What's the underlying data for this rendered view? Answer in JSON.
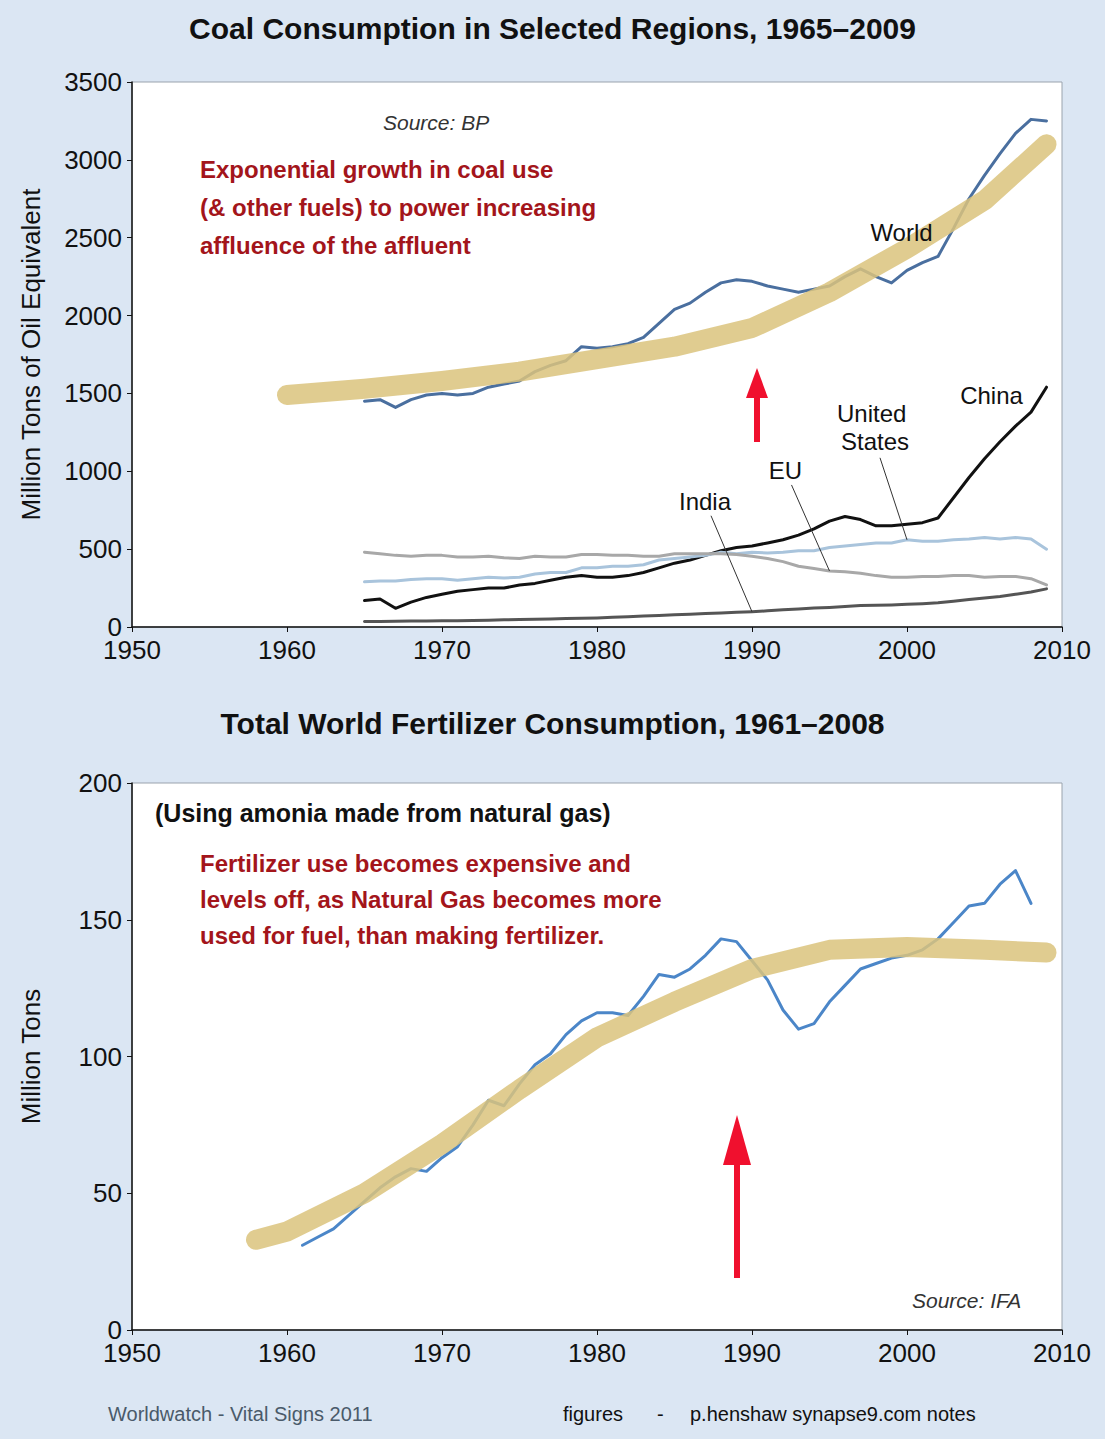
{
  "chart_data": [
    {
      "type": "line",
      "title": "Coal Consumption in Selected Regions, 1965–2009",
      "y_label": "Million Tons of Oil Equivalent",
      "annotation": [
        "Exponential growth in coal use",
        "(& other fuels) to power increasing",
        "affluence of the affluent"
      ],
      "source": "Source: BP",
      "xlim": [
        1950,
        2010
      ],
      "xticks": [
        1950,
        1960,
        1970,
        1980,
        1990,
        2000,
        2010
      ],
      "ylim": [
        0,
        3500
      ],
      "yticks": [
        0,
        500,
        1000,
        1500,
        2000,
        2500,
        3000,
        3500
      ],
      "grid": false,
      "series": [
        {
          "name": "World",
          "color": "#4a6f9f",
          "line_style": "solid",
          "x": [
            1965,
            1966,
            1967,
            1968,
            1969,
            1970,
            1971,
            1972,
            1973,
            1974,
            1975,
            1976,
            1977,
            1978,
            1979,
            1980,
            1981,
            1982,
            1983,
            1984,
            1985,
            1986,
            1987,
            1988,
            1989,
            1990,
            1991,
            1992,
            1993,
            1994,
            1995,
            1996,
            1997,
            1998,
            1999,
            2000,
            2001,
            2002,
            2003,
            2004,
            2005,
            2006,
            2007,
            2008,
            2009
          ],
          "values": [
            1450,
            1460,
            1410,
            1460,
            1490,
            1500,
            1490,
            1500,
            1540,
            1560,
            1580,
            1640,
            1680,
            1710,
            1800,
            1790,
            1800,
            1820,
            1860,
            1950,
            2040,
            2080,
            2150,
            2210,
            2230,
            2220,
            2190,
            2170,
            2150,
            2170,
            2190,
            2250,
            2300,
            2250,
            2210,
            2290,
            2340,
            2380,
            2560,
            2750,
            2900,
            3040,
            3170,
            3260,
            3250
          ]
        },
        {
          "name": "China",
          "color": "#111111",
          "line_style": "solid",
          "x": [
            1965,
            1966,
            1967,
            1968,
            1969,
            1970,
            1971,
            1972,
            1973,
            1974,
            1975,
            1976,
            1977,
            1978,
            1979,
            1980,
            1981,
            1982,
            1983,
            1984,
            1985,
            1986,
            1987,
            1988,
            1989,
            1990,
            1991,
            1992,
            1993,
            1994,
            1995,
            1996,
            1997,
            1998,
            1999,
            2000,
            2001,
            2002,
            2003,
            2004,
            2005,
            2006,
            2007,
            2008,
            2009
          ],
          "values": [
            170,
            180,
            120,
            160,
            190,
            210,
            230,
            240,
            250,
            250,
            270,
            280,
            300,
            320,
            330,
            320,
            320,
            330,
            350,
            380,
            410,
            430,
            460,
            490,
            510,
            520,
            540,
            560,
            590,
            630,
            680,
            710,
            690,
            650,
            650,
            660,
            670,
            700,
            830,
            960,
            1080,
            1190,
            1290,
            1380,
            1540
          ]
        },
        {
          "name": "United States",
          "color": "#a9c4dc",
          "line_style": "solid",
          "x": [
            1965,
            1966,
            1967,
            1968,
            1969,
            1970,
            1971,
            1972,
            1973,
            1974,
            1975,
            1976,
            1977,
            1978,
            1979,
            1980,
            1981,
            1982,
            1983,
            1984,
            1985,
            1986,
            1987,
            1988,
            1989,
            1990,
            1991,
            1992,
            1993,
            1994,
            1995,
            1996,
            1997,
            1998,
            1999,
            2000,
            2001,
            2002,
            2003,
            2004,
            2005,
            2006,
            2007,
            2008,
            2009
          ],
          "values": [
            290,
            295,
            295,
            305,
            310,
            310,
            300,
            310,
            320,
            315,
            320,
            340,
            350,
            350,
            380,
            380,
            390,
            390,
            400,
            430,
            440,
            450,
            460,
            480,
            470,
            480,
            475,
            480,
            490,
            490,
            510,
            520,
            530,
            540,
            540,
            560,
            550,
            550,
            560,
            565,
            575,
            565,
            575,
            565,
            500
          ]
        },
        {
          "name": "EU",
          "color": "#a8a8a8",
          "line_style": "solid",
          "x": [
            1965,
            1966,
            1967,
            1968,
            1969,
            1970,
            1971,
            1972,
            1973,
            1974,
            1975,
            1976,
            1977,
            1978,
            1979,
            1980,
            1981,
            1982,
            1983,
            1984,
            1985,
            1986,
            1987,
            1988,
            1989,
            1990,
            1991,
            1992,
            1993,
            1994,
            1995,
            1996,
            1997,
            1998,
            1999,
            2000,
            2001,
            2002,
            2003,
            2004,
            2005,
            2006,
            2007,
            2008,
            2009
          ],
          "values": [
            480,
            470,
            460,
            455,
            460,
            460,
            450,
            450,
            455,
            445,
            440,
            455,
            450,
            450,
            465,
            465,
            460,
            460,
            455,
            455,
            470,
            470,
            470,
            470,
            465,
            455,
            440,
            420,
            390,
            375,
            360,
            355,
            345,
            330,
            320,
            320,
            325,
            325,
            330,
            330,
            320,
            325,
            325,
            310,
            270
          ]
        },
        {
          "name": "India",
          "color": "#555555",
          "line_style": "solid",
          "x": [
            1965,
            1966,
            1967,
            1968,
            1969,
            1970,
            1971,
            1972,
            1973,
            1974,
            1975,
            1976,
            1977,
            1978,
            1979,
            1980,
            1981,
            1982,
            1983,
            1984,
            1985,
            1986,
            1987,
            1988,
            1989,
            1990,
            1991,
            1992,
            1993,
            1994,
            1995,
            1996,
            1997,
            1998,
            1999,
            2000,
            2001,
            2002,
            2003,
            2004,
            2005,
            2006,
            2007,
            2008,
            2009
          ],
          "values": [
            35,
            36,
            37,
            38,
            38,
            40,
            40,
            42,
            44,
            46,
            48,
            50,
            52,
            54,
            56,
            58,
            62,
            66,
            70,
            74,
            78,
            82,
            86,
            90,
            94,
            98,
            104,
            110,
            116,
            122,
            126,
            132,
            138,
            140,
            142,
            146,
            150,
            156,
            166,
            176,
            186,
            196,
            210,
            225,
            245
          ]
        },
        {
          "color": "#dbc37c",
          "line_style": "highlighter",
          "x": [
            1960,
            1965,
            1970,
            1975,
            1980,
            1985,
            1990,
            1995,
            2000,
            2005,
            2009
          ],
          "values": [
            1490,
            1530,
            1580,
            1640,
            1720,
            1800,
            1920,
            2150,
            2430,
            2740,
            3100
          ]
        }
      ]
    },
    {
      "type": "line",
      "title": "Total World Fertilizer Consumption, 1961–2008",
      "subtitle": "(Using amonia made from natural gas)",
      "y_label": "Million Tons",
      "annotation": [
        "Fertilizer use becomes expensive and",
        "levels off, as Natural Gas becomes more",
        "used for fuel, than making fertilizer."
      ],
      "source": "Source: IFA",
      "xlim": [
        1950,
        2010
      ],
      "xticks": [
        1950,
        1960,
        1970,
        1980,
        1990,
        2000,
        2010
      ],
      "ylim": [
        0,
        200
      ],
      "yticks": [
        0,
        50,
        100,
        150,
        200
      ],
      "grid": false,
      "series": [
        {
          "color": "#4b86c8",
          "line_style": "solid",
          "x": [
            1961,
            1962,
            1963,
            1964,
            1965,
            1966,
            1967,
            1968,
            1969,
            1970,
            1971,
            1972,
            1973,
            1974,
            1975,
            1976,
            1977,
            1978,
            1979,
            1980,
            1981,
            1982,
            1983,
            1984,
            1985,
            1986,
            1987,
            1988,
            1989,
            1990,
            1991,
            1992,
            1993,
            1994,
            1995,
            1996,
            1997,
            1998,
            1999,
            2000,
            2001,
            2002,
            2003,
            2004,
            2005,
            2006,
            2007,
            2008
          ],
          "values": [
            31,
            34,
            37,
            42,
            47,
            52,
            56,
            59,
            58,
            63,
            67,
            75,
            84,
            82,
            90,
            97,
            101,
            108,
            113,
            116,
            116,
            115,
            122,
            130,
            129,
            132,
            137,
            143,
            142,
            135,
            128,
            117,
            110,
            112,
            120,
            126,
            132,
            134,
            136,
            137,
            139,
            143,
            149,
            155,
            156,
            163,
            168,
            156
          ]
        },
        {
          "color": "#dbc37c",
          "line_style": "highlighter",
          "x": [
            1958,
            1960,
            1965,
            1970,
            1975,
            1980,
            1985,
            1990,
            1995,
            2000,
            2005,
            2009
          ],
          "values": [
            33,
            36,
            50,
            68,
            88,
            107,
            120,
            132,
            139,
            140,
            139,
            138
          ]
        }
      ]
    }
  ],
  "footer": [
    "Worldwatch - Vital Signs 2011",
    "figures",
    "-",
    "p.henshaw synapse9.com notes"
  ]
}
